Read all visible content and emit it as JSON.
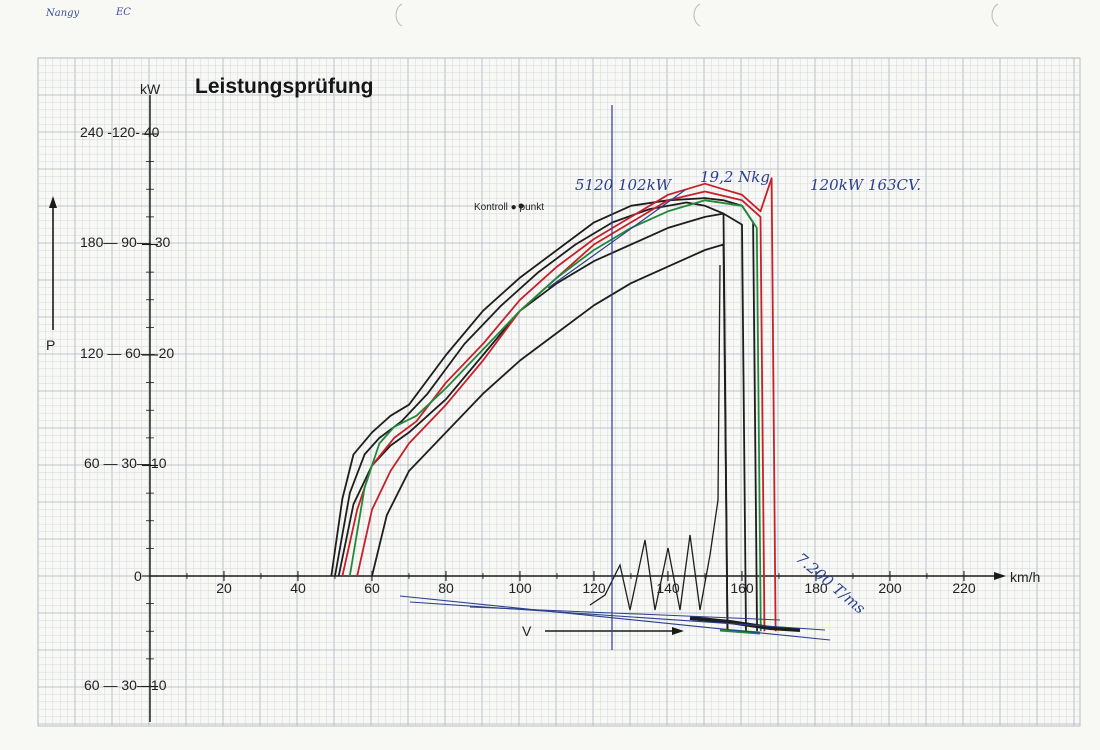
{
  "colors": {
    "paper": "#f8f8f5",
    "grid_fine": "#cfd3dc",
    "grid_major": "#aeb4c2",
    "axis": "#1a1a1a",
    "black_run": "#1e1e1e",
    "red_run": "#c8202a",
    "green_run": "#1f8a3a",
    "blue_ink": "#2a3f8f"
  },
  "header_note": "Nangy",
  "header_note_suffix": "EC",
  "chart_data": {
    "type": "line",
    "title": "Leistungsprüfung",
    "xlabel": "km/h",
    "ylabel": "P",
    "y_unit": "kW",
    "xlim": [
      0,
      230
    ],
    "ylim": [
      -30,
      40
    ],
    "x_ticks": [
      "20",
      "40",
      "60",
      "80",
      "100",
      "120",
      "140",
      "160",
      "180",
      "200",
      "220"
    ],
    "y_tick_labels": [
      {
        "value": 40,
        "text": "240 -120- 40"
      },
      {
        "value": 30,
        "text": "180— 90— 30"
      },
      {
        "value": 20,
        "text": "120 — 60— 20"
      },
      {
        "value": 10,
        "text": "60 — 30—10"
      },
      {
        "value": 0,
        "text": "0"
      },
      {
        "value": -10,
        "text": "60 — 30—10"
      }
    ],
    "grid": true,
    "annotations": {
      "kontrollpunkt": "Kontroll ● punkt",
      "hand_max_power": "5120  102kW",
      "hand_weight": "19,2 Nkg",
      "hand_power_cv": "120kW   163CV.",
      "hand_rpm": "7.200 T/ms",
      "v_label": "V"
    },
    "series": [
      {
        "color": "black",
        "x": [
          49,
          52,
          55,
          60,
          65,
          70,
          80,
          90,
          100,
          110,
          120,
          130,
          140,
          150,
          155,
          160,
          163
        ],
        "y": [
          0,
          7,
          11,
          13,
          14.5,
          15.5,
          20,
          24,
          27,
          29.5,
          32,
          33.5,
          34,
          34.2,
          34,
          33.5,
          32
        ]
      },
      {
        "color": "black",
        "x": [
          50,
          54,
          58,
          62,
          68,
          75,
          85,
          95,
          105,
          115,
          125,
          135,
          145,
          150,
          155,
          160
        ],
        "y": [
          0,
          7.5,
          11,
          12.5,
          14,
          16.5,
          21,
          24.5,
          27.5,
          30,
          32,
          33.2,
          33.8,
          33.5,
          32.8,
          31.8
        ]
      },
      {
        "color": "black",
        "x": [
          51,
          55,
          60,
          65,
          70,
          80,
          90,
          100,
          110,
          120,
          130,
          140,
          150,
          155
        ],
        "y": [
          0,
          6.5,
          10,
          11.8,
          13,
          16,
          20,
          24,
          26.5,
          28.5,
          30,
          31.5,
          32.5,
          32.8
        ]
      },
      {
        "color": "black",
        "x": [
          60,
          64,
          70,
          80,
          90,
          100,
          110,
          120,
          130,
          140,
          150,
          155
        ],
        "y": [
          0,
          5.5,
          9.5,
          13,
          16.5,
          19.5,
          22,
          24.5,
          26.5,
          28,
          29.5,
          30
        ]
      },
      {
        "color": "red",
        "x": [
          52,
          56,
          60,
          66,
          72,
          80,
          90,
          100,
          110,
          120,
          130,
          140,
          150,
          155,
          160,
          165,
          168
        ],
        "y": [
          0,
          6,
          10,
          12.5,
          14,
          17.5,
          21,
          25,
          28,
          30.5,
          32.5,
          34.5,
          35.5,
          35,
          34.5,
          33,
          36
        ]
      },
      {
        "color": "red",
        "x": [
          56,
          60,
          65,
          70,
          80,
          90,
          100,
          110,
          120,
          130,
          140,
          150,
          160,
          165
        ],
        "y": [
          0,
          6,
          9.5,
          12,
          15.5,
          19.5,
          24,
          27,
          30,
          32,
          34,
          34.8,
          34,
          32.5
        ]
      },
      {
        "color": "green",
        "x": [
          54,
          58,
          62,
          66,
          72,
          80,
          90,
          100,
          110,
          120,
          130,
          140,
          150,
          160,
          164
        ],
        "y": [
          0,
          8,
          12,
          13.5,
          14.5,
          17,
          20.5,
          24,
          27,
          29.5,
          31.5,
          33,
          34,
          33.5,
          31.5
        ]
      }
    ]
  }
}
